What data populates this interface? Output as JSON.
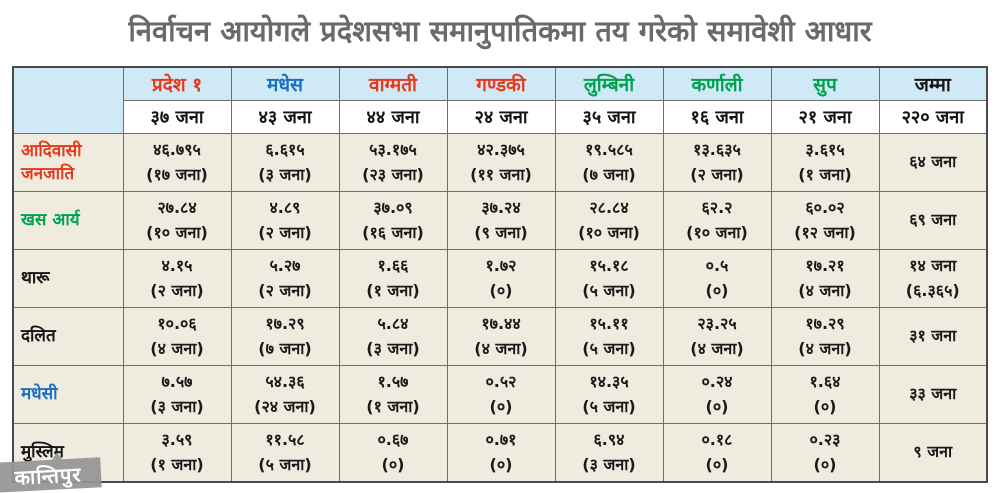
{
  "title": "निर्वाचन आयोगले प्रदेशसभा समानुपातिकमा तय गरेको समावेशी आधार",
  "colors": {
    "red": "#e8391d",
    "blue": "#1b6fbe",
    "green": "#00a24f",
    "black": "#151515",
    "header_bg": "#cfe9f6",
    "row_bg": "#efecdf",
    "border": "#6e6e6e",
    "title_text": "#6a6a6a",
    "watermark_bg": "#949494"
  },
  "table": {
    "provinces": [
      {
        "name": "प्रदेश १",
        "seats": "३७ जना"
      },
      {
        "name": "मधेस",
        "seats": "४३ जना"
      },
      {
        "name": "वाग्मती",
        "seats": "४४ जना"
      },
      {
        "name": "गण्डकी",
        "seats": "२४ जना"
      },
      {
        "name": "लुम्बिनी",
        "seats": "३५ जना"
      },
      {
        "name": "कर्णाली",
        "seats": "१६ जना"
      },
      {
        "name": "सुप",
        "seats": "२१ जना"
      },
      {
        "name": "जम्मा",
        "seats": "२२० जना"
      }
    ],
    "rows": [
      {
        "label": "आदिवासी जनजाति",
        "cells": [
          [
            "४६.७९५",
            "(१७ जना)"
          ],
          [
            "६.६१५",
            "(३ जना)"
          ],
          [
            "५३.१७५",
            "(२३ जना)"
          ],
          [
            "४२.३७५",
            "(११ जना)"
          ],
          [
            "१९.५८५",
            "(७ जना)"
          ],
          [
            "१३.६३५",
            "(२ जना)"
          ],
          [
            "३.६१५",
            "(१ जना)"
          ],
          [
            "६४ जना",
            ""
          ]
        ]
      },
      {
        "label": "खस आर्य",
        "cells": [
          [
            "२७.८४",
            "(१० जना)"
          ],
          [
            "४.८९",
            "(२ जना)"
          ],
          [
            "३७.०९",
            "(१६ जना)"
          ],
          [
            "३७.२४",
            "(९ जना)"
          ],
          [
            "२८.८४",
            "(१० जना)"
          ],
          [
            "६२.२",
            "(१० जना)"
          ],
          [
            "६०.०२",
            "(१२ जना)"
          ],
          [
            "६९ जना",
            ""
          ]
        ]
      },
      {
        "label": "थारू",
        "cells": [
          [
            "४.१५",
            "(२ जना)"
          ],
          [
            "५.२७",
            "(२ जना)"
          ],
          [
            "१.६६",
            "(१ जना)"
          ],
          [
            "१.७२",
            "(०)"
          ],
          [
            "१५.१८",
            "(५ जना)"
          ],
          [
            "०.५",
            "(०)"
          ],
          [
            "१७.२१",
            "(४ जना)"
          ],
          [
            "१४ जना",
            "(६.३६५)"
          ]
        ]
      },
      {
        "label": "दलित",
        "cells": [
          [
            "१०.०६",
            "(४ जना)"
          ],
          [
            "१७.२९",
            "(७ जना)"
          ],
          [
            "५.८४",
            "(३ जना)"
          ],
          [
            "१७.४४",
            "(४ जना)"
          ],
          [
            "१५.११",
            "(५ जना)"
          ],
          [
            "२३.२५",
            "(४ जना)"
          ],
          [
            "१७.२९",
            "(४ जना)"
          ],
          [
            "३१ जना",
            ""
          ]
        ]
      },
      {
        "label": "मधेसी",
        "cells": [
          [
            "७.५७",
            "(३ जना)"
          ],
          [
            "५४.३६",
            "(२४ जना)"
          ],
          [
            "१.५७",
            "(१ जना)"
          ],
          [
            "०.५२",
            "(०)"
          ],
          [
            "१४.३५",
            "(५ जना)"
          ],
          [
            "०.२४",
            "(०)"
          ],
          [
            "१.६४",
            "(०)"
          ],
          [
            "३३ जना",
            ""
          ]
        ]
      },
      {
        "label": "मुस्लिम",
        "cells": [
          [
            "३.५९",
            "(१ जना)"
          ],
          [
            "११.५८",
            "(५ जना)"
          ],
          [
            "०.६७",
            "(०)"
          ],
          [
            "०.७१",
            "(०)"
          ],
          [
            "६.९४",
            "(३ जना)"
          ],
          [
            "०.१८",
            "(०)"
          ],
          [
            "०.२३",
            "(०)"
          ],
          [
            "९ जना",
            ""
          ]
        ]
      }
    ]
  },
  "watermark": {
    "text": "कान्तिपुर"
  },
  "chart_data": {
    "type": "table",
    "title": "निर्वाचन आयोगले प्रदेशसभा समानुपातिकमा तय गरेको समावेशी आधार",
    "columns": [
      "",
      "प्रदेश १",
      "मधेस",
      "वाग्मती",
      "गण्डकी",
      "लुम्बिनी",
      "कर्णाली",
      "सुप",
      "जम्मा"
    ],
    "rows": [
      [
        "",
        "३७ जना",
        "४३ जना",
        "४४ जना",
        "२४ जना",
        "३५ जना",
        "१६ जना",
        "२१ जना",
        "२२० जना"
      ],
      [
        "आदिवासी जनजाति",
        "४६.७९५ (१७ जना)",
        "६.६१५ (३ जना)",
        "५३.१७५ (२३ जना)",
        "४२.३७५ (११ जना)",
        "१९.५८५ (७ जना)",
        "१३.६३५ (२ जना)",
        "३.६१५ (१ जना)",
        "६४ जना"
      ],
      [
        "खस आर्य",
        "२७.८४ (१० जना)",
        "४.८९ (२ जना)",
        "३७.०९ (१६ जना)",
        "३७.२४ (९ जना)",
        "२८.८४ (१० जना)",
        "६२.२ (१० जना)",
        "६०.०२ (१२ जना)",
        "६९ जना"
      ],
      [
        "थारू",
        "४.१५ (२ जना)",
        "५.२७ (२ जना)",
        "१.६६ (१ जना)",
        "१.७२ (०)",
        "१५.१८ (५ जना)",
        "०.५ (०)",
        "१७.२१ (४ जना)",
        "१४ जना (६.३६५)"
      ],
      [
        "दलित",
        "१०.०६ (४ जना)",
        "१७.२९ (७ जना)",
        "५.८४ (३ जना)",
        "१७.४४ (४ जना)",
        "१५.११ (५ जना)",
        "२३.२५ (४ जना)",
        "१७.२९ (४ जना)",
        "३१ जना"
      ],
      [
        "मधेसी",
        "७.५७ (३ जना)",
        "५४.३६ (२४ जना)",
        "१.५७ (१ जना)",
        "०.५२ (०)",
        "१४.३५ (५ जना)",
        "०.२४ (०)",
        "१.६४ (०)",
        "३३ जना"
      ],
      [
        "मुस्लिम",
        "३.५९ (१ जना)",
        "११.५८ (५ जना)",
        "०.६७ (०)",
        "०.७१ (०)",
        "६.९४ (३ जना)",
        "०.१८ (०)",
        "०.२३ (०)",
        "९ जना"
      ]
    ]
  }
}
